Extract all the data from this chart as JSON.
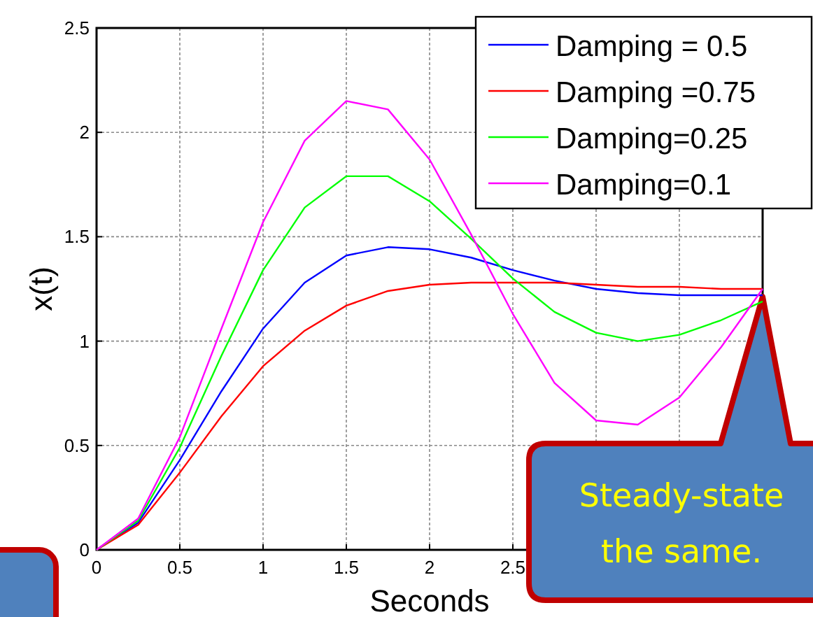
{
  "chart_data": {
    "type": "line",
    "xlabel": "Seconds",
    "ylabel": "x(t)",
    "x": [
      0,
      0.25,
      0.5,
      0.75,
      1,
      1.25,
      1.5,
      1.75,
      2,
      2.25,
      2.5,
      2.75,
      3,
      3.25,
      3.5,
      3.75,
      4
    ],
    "series": [
      {
        "name": "Damping = 0.5",
        "color": "#0000ff",
        "values": [
          0,
          0.13,
          0.43,
          0.76,
          1.06,
          1.28,
          1.41,
          1.45,
          1.44,
          1.4,
          1.34,
          1.29,
          1.25,
          1.23,
          1.22,
          1.22,
          1.22
        ]
      },
      {
        "name": "Damping =0.75",
        "color": "#ff0000",
        "values": [
          0,
          0.12,
          0.37,
          0.64,
          0.88,
          1.05,
          1.17,
          1.24,
          1.27,
          1.28,
          1.28,
          1.28,
          1.27,
          1.26,
          1.26,
          1.25,
          1.25
        ]
      },
      {
        "name": "Damping=0.25",
        "color": "#00ff00",
        "values": [
          0,
          0.14,
          0.49,
          0.93,
          1.34,
          1.64,
          1.79,
          1.79,
          1.67,
          1.49,
          1.3,
          1.14,
          1.04,
          1.0,
          1.03,
          1.1,
          1.19
        ]
      },
      {
        "name": "Damping=0.1",
        "color": "#ff00ff",
        "values": [
          0,
          0.15,
          0.54,
          1.06,
          1.57,
          1.96,
          2.15,
          2.11,
          1.87,
          1.51,
          1.13,
          0.8,
          0.62,
          0.6,
          0.73,
          0.97,
          1.25
        ]
      }
    ],
    "xlim": [
      0,
      4
    ],
    "xticks": [
      0,
      0.5,
      1,
      1.5,
      2,
      2.5,
      {
        "value": 3,
        "label": null
      },
      {
        "value": 3.5,
        "label": null
      },
      {
        "value": 4,
        "label": null
      }
    ],
    "ylim": [
      0,
      2.5
    ],
    "yticks": [
      0,
      0.5,
      1,
      1.5,
      2,
      2.5
    ],
    "grid": true,
    "legend": "top right",
    "line_style": "solid",
    "marker": "none",
    "annotations": [
      "Steady-state the same."
    ]
  }
}
